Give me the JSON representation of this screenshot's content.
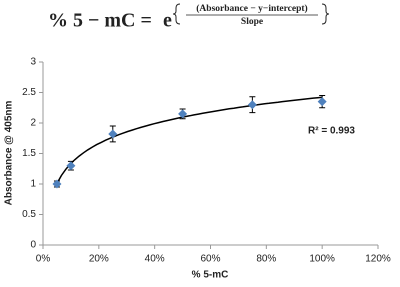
{
  "chart_data": {
    "type": "scatter",
    "formula": {
      "lhs": "% 5 − mC = ",
      "base": "e",
      "numerator": "(Absorbance − y−intercept)",
      "denominator": "Slope"
    },
    "x_label": "% 5-mC",
    "y_label": "Absorbance @ 405nm",
    "annotation": "R² = 0.993",
    "x": [
      5,
      10,
      25,
      50,
      75,
      100
    ],
    "series": [
      {
        "color": "#4f81bd",
        "values": [
          1.0,
          1.3,
          1.82,
          2.15,
          2.3,
          2.35
        ],
        "errors": [
          0.05,
          0.07,
          0.13,
          0.08,
          0.13,
          0.1
        ]
      }
    ],
    "trendline": "logarithmic",
    "xlim": [
      0,
      120
    ],
    "xticks": [
      {
        "value": 0,
        "label": "0%"
      },
      {
        "value": 20,
        "label": "20%"
      },
      {
        "value": 40,
        "label": "40%"
      },
      {
        "value": 60,
        "label": "60%"
      },
      {
        "value": 80,
        "label": "80%"
      },
      {
        "value": 100,
        "label": "100%"
      },
      {
        "value": 120,
        "label": "120%"
      }
    ],
    "ylim": [
      0,
      3
    ],
    "yticks": [
      0,
      0.5,
      1,
      1.5,
      2,
      2.5,
      3
    ],
    "grid": false
  }
}
